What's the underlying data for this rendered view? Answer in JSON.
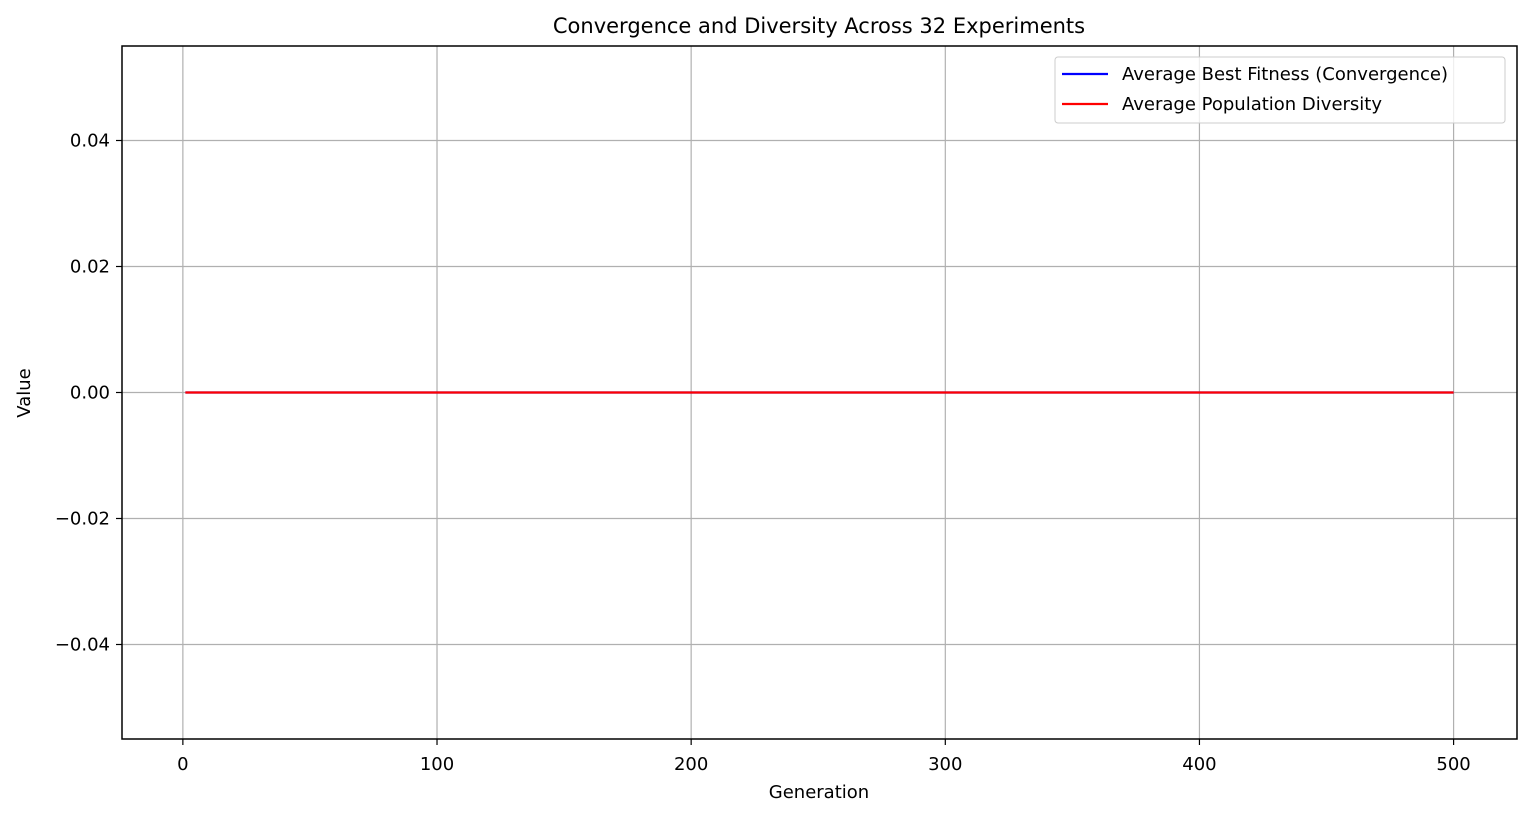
{
  "chart_data": {
    "type": "line",
    "title": "Convergence and Diversity Across 32 Experiments",
    "xlabel": "Generation",
    "ylabel": "Value",
    "xlim": [
      -23.95,
      524.95
    ],
    "ylim": [
      -0.055,
      0.055
    ],
    "xticks": [
      0,
      100,
      200,
      300,
      400,
      500
    ],
    "xtick_labels": [
      "0",
      "100",
      "200",
      "300",
      "400",
      "500"
    ],
    "yticks": [
      -0.04,
      -0.02,
      0.0,
      0.02,
      0.04
    ],
    "ytick_labels": [
      "−0.04",
      "−0.02",
      "0.00",
      "0.02",
      "0.04"
    ],
    "grid": true,
    "legend_position": "top-right",
    "x": [
      1,
      500
    ],
    "series": [
      {
        "name": "Average Best Fitness (Convergence)",
        "color": "#0000ff",
        "values": [
          0,
          0
        ]
      },
      {
        "name": "Average Population Diversity",
        "color": "#ff0000",
        "values": [
          0,
          0
        ]
      }
    ]
  }
}
